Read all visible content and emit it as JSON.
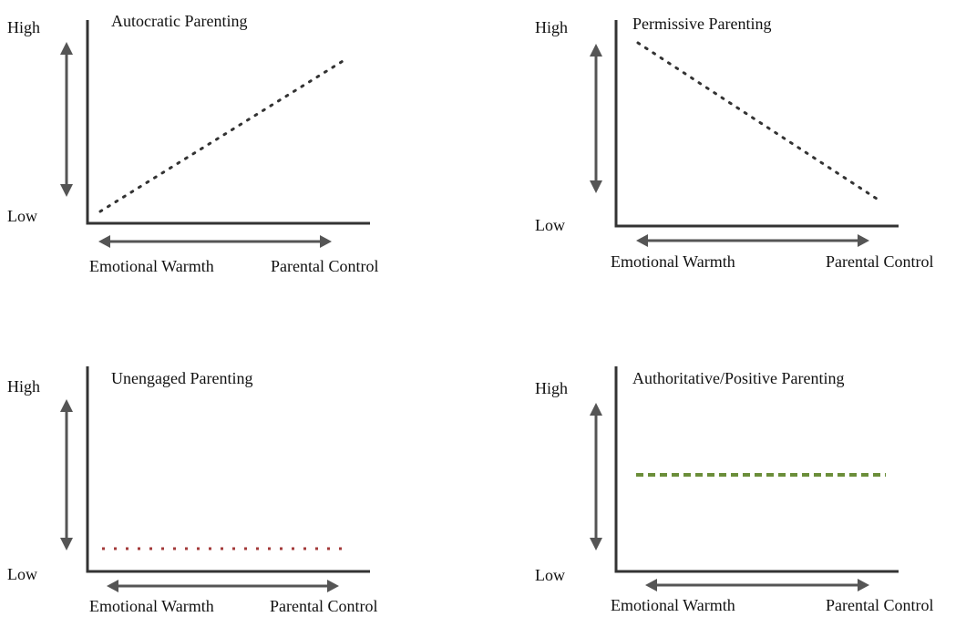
{
  "panels": [
    {
      "title": "Autocratic Parenting",
      "high_label": "High",
      "low_label": "Low",
      "x_left_label": "Emotional Warmth",
      "x_right_label": "Parental Control",
      "trend": "increasing",
      "line_style": "dotted",
      "line_color": "#333333"
    },
    {
      "title": "Permissive Parenting",
      "high_label": "High",
      "low_label": "Low",
      "x_left_label": "Emotional Warmth",
      "x_right_label": "Parental Control",
      "trend": "decreasing",
      "line_style": "dotted",
      "line_color": "#333333"
    },
    {
      "title": "Unengaged Parenting",
      "high_label": "High",
      "low_label": "Low",
      "x_left_label": "Emotional Warmth",
      "x_right_label": "Parental Control",
      "trend": "flat-low",
      "line_style": "dotted",
      "line_color": "#a33a3a"
    },
    {
      "title": "Authoritative/Positive Parenting",
      "high_label": "High",
      "low_label": "Low",
      "x_left_label": "Emotional Warmth",
      "x_right_label": "Parental Control",
      "trend": "flat-mid",
      "line_style": "dashed",
      "line_color": "#6b8e3a"
    }
  ]
}
